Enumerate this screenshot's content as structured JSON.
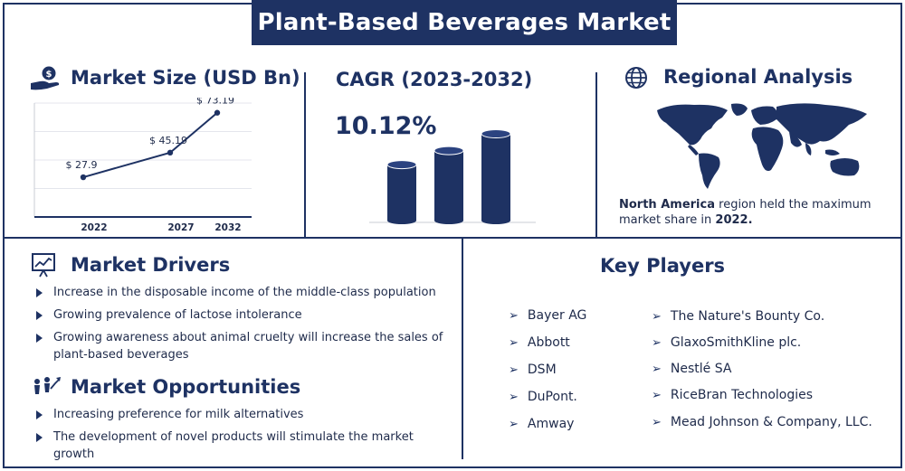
{
  "title": "Plant-Based Beverages Market",
  "market_size": {
    "heading": "Market Size (USD Bn)",
    "chart_data": {
      "type": "line",
      "categories": [
        "2022",
        "2027",
        "2032"
      ],
      "values": [
        27.9,
        45.19,
        73.19
      ],
      "data_labels": [
        "$ 27.9",
        "$ 45.19",
        "$ 73.19"
      ],
      "ylim": [
        0,
        80
      ],
      "grid": true
    }
  },
  "cagr": {
    "heading": "CAGR (2023-2032)",
    "value": "10.12%",
    "chart_data": {
      "type": "bar",
      "values": [
        1,
        1.25,
        1.55
      ]
    }
  },
  "regional": {
    "heading": "Regional Analysis",
    "region": "North America",
    "text_mid": " region held the maximum market share in ",
    "year": "2022."
  },
  "drivers": {
    "heading": "Market Drivers",
    "items": [
      "Increase in the disposable income of the middle-class population",
      "Growing prevalence of lactose intolerance",
      "Growing awareness about animal cruelty will increase the sales of plant-based beverages"
    ]
  },
  "opportunities": {
    "heading": "Market Opportunities",
    "items": [
      "Increasing preference for milk alternatives",
      "The development of novel products will stimulate the market growth"
    ]
  },
  "key_players": {
    "heading": "Key Players",
    "left": [
      "Bayer AG",
      "Abbott",
      "DSM",
      "DuPont.",
      "Amway"
    ],
    "right": [
      "The Nature's Bounty Co.",
      "GlaxoSmithKline plc.",
      "Nestlé SA",
      "RiceBran Technologies",
      "Mead Johnson & Company, LLC."
    ]
  },
  "colors": {
    "navy": "#1e3263",
    "text": "#1e2a4a"
  }
}
